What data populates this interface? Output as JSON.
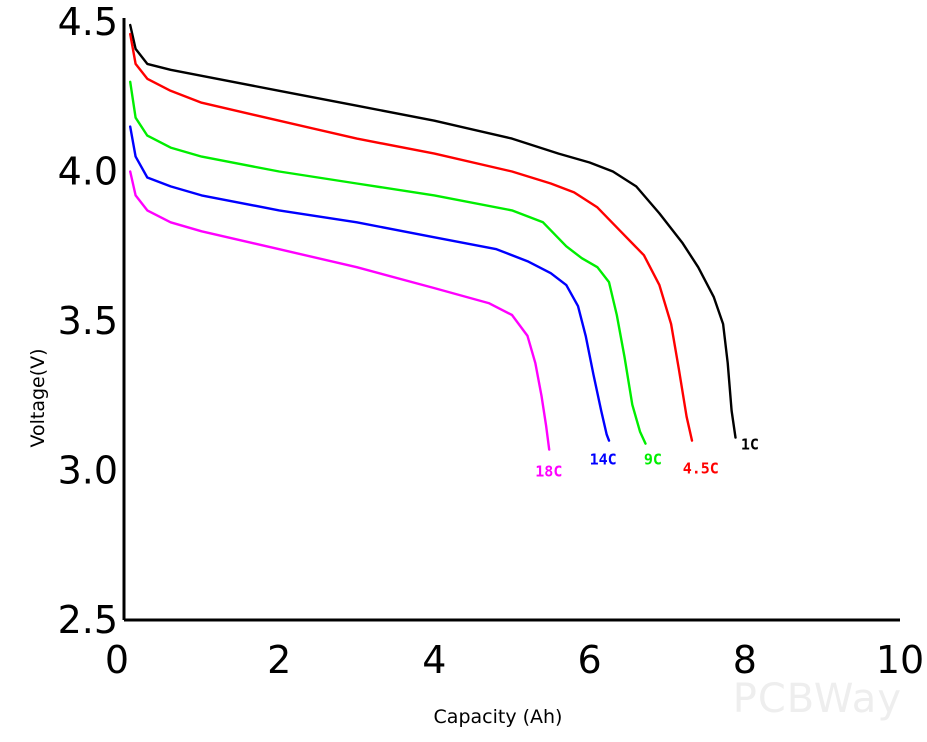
{
  "chart_data": {
    "type": "line",
    "xlabel": "Capacity (Ah)",
    "ylabel": "Voltage(V)",
    "xlim": [
      0,
      10
    ],
    "ylim": [
      2.5,
      4.5
    ],
    "xticks": [
      "0",
      "2",
      "4",
      "6",
      "8",
      "10"
    ],
    "yticks": [
      "2.5",
      "3.0",
      "3.5",
      "4.0",
      "4.5"
    ],
    "grid": false,
    "legend": "inline labels at curve ends",
    "series": [
      {
        "name": "1C",
        "color": "#000000",
        "points": [
          [
            0.08,
            4.49
          ],
          [
            0.15,
            4.41
          ],
          [
            0.3,
            4.36
          ],
          [
            0.6,
            4.34
          ],
          [
            1.0,
            4.32
          ],
          [
            2.0,
            4.27
          ],
          [
            3.0,
            4.22
          ],
          [
            4.0,
            4.17
          ],
          [
            5.0,
            4.11
          ],
          [
            5.6,
            4.06
          ],
          [
            6.0,
            4.03
          ],
          [
            6.3,
            4.0
          ],
          [
            6.6,
            3.95
          ],
          [
            6.9,
            3.86
          ],
          [
            7.2,
            3.76
          ],
          [
            7.4,
            3.68
          ],
          [
            7.6,
            3.58
          ],
          [
            7.72,
            3.49
          ],
          [
            7.78,
            3.36
          ],
          [
            7.83,
            3.2
          ],
          [
            7.88,
            3.11
          ]
        ]
      },
      {
        "name": "4.5C",
        "color": "#ff0000",
        "points": [
          [
            0.08,
            4.46
          ],
          [
            0.15,
            4.36
          ],
          [
            0.3,
            4.31
          ],
          [
            0.6,
            4.27
          ],
          [
            1.0,
            4.23
          ],
          [
            2.0,
            4.17
          ],
          [
            3.0,
            4.11
          ],
          [
            4.0,
            4.06
          ],
          [
            5.0,
            4.0
          ],
          [
            5.5,
            3.96
          ],
          [
            5.8,
            3.93
          ],
          [
            6.1,
            3.88
          ],
          [
            6.4,
            3.8
          ],
          [
            6.7,
            3.72
          ],
          [
            6.9,
            3.62
          ],
          [
            7.05,
            3.49
          ],
          [
            7.15,
            3.34
          ],
          [
            7.25,
            3.18
          ],
          [
            7.32,
            3.1
          ]
        ]
      },
      {
        "name": "9C",
        "color": "#00ee00",
        "points": [
          [
            0.08,
            4.3
          ],
          [
            0.15,
            4.18
          ],
          [
            0.3,
            4.12
          ],
          [
            0.6,
            4.08
          ],
          [
            1.0,
            4.05
          ],
          [
            2.0,
            4.0
          ],
          [
            3.0,
            3.96
          ],
          [
            4.0,
            3.92
          ],
          [
            5.0,
            3.87
          ],
          [
            5.4,
            3.83
          ],
          [
            5.7,
            3.75
          ],
          [
            5.9,
            3.71
          ],
          [
            6.1,
            3.68
          ],
          [
            6.25,
            3.63
          ],
          [
            6.35,
            3.52
          ],
          [
            6.45,
            3.38
          ],
          [
            6.55,
            3.22
          ],
          [
            6.65,
            3.13
          ],
          [
            6.72,
            3.09
          ]
        ]
      },
      {
        "name": "14C",
        "color": "#0000ff",
        "points": [
          [
            0.08,
            4.15
          ],
          [
            0.15,
            4.05
          ],
          [
            0.3,
            3.98
          ],
          [
            0.6,
            3.95
          ],
          [
            1.0,
            3.92
          ],
          [
            2.0,
            3.87
          ],
          [
            3.0,
            3.83
          ],
          [
            4.0,
            3.78
          ],
          [
            4.8,
            3.74
          ],
          [
            5.2,
            3.7
          ],
          [
            5.5,
            3.66
          ],
          [
            5.7,
            3.62
          ],
          [
            5.85,
            3.55
          ],
          [
            5.95,
            3.45
          ],
          [
            6.05,
            3.32
          ],
          [
            6.15,
            3.2
          ],
          [
            6.22,
            3.12
          ],
          [
            6.25,
            3.1
          ]
        ]
      },
      {
        "name": "18C",
        "color": "#ff00ff",
        "points": [
          [
            0.08,
            4.0
          ],
          [
            0.15,
            3.92
          ],
          [
            0.3,
            3.87
          ],
          [
            0.6,
            3.83
          ],
          [
            1.0,
            3.8
          ],
          [
            2.0,
            3.74
          ],
          [
            3.0,
            3.68
          ],
          [
            4.0,
            3.61
          ],
          [
            4.7,
            3.56
          ],
          [
            5.0,
            3.52
          ],
          [
            5.2,
            3.45
          ],
          [
            5.3,
            3.36
          ],
          [
            5.38,
            3.25
          ],
          [
            5.44,
            3.15
          ],
          [
            5.48,
            3.07
          ]
        ]
      }
    ],
    "series_labels": [
      {
        "text": "1C",
        "color": "#000000",
        "x": 7.95,
        "y": 3.07
      },
      {
        "text": "4.5C",
        "color": "#ff0000",
        "x": 7.2,
        "y": 2.99
      },
      {
        "text": "9C",
        "color": "#00ee00",
        "x": 6.7,
        "y": 3.02
      },
      {
        "text": "14C",
        "color": "#0000ff",
        "x": 6.0,
        "y": 3.02
      },
      {
        "text": "18C",
        "color": "#ff00ff",
        "x": 5.3,
        "y": 2.98
      }
    ]
  },
  "watermark": {
    "text": "PCBWay"
  }
}
